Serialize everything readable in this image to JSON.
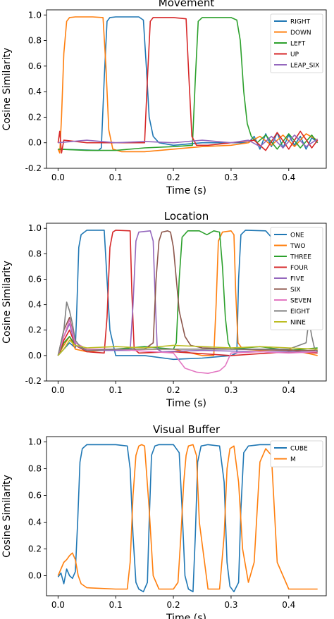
{
  "chart_data": [
    {
      "type": "line",
      "title": "Movement",
      "xlabel": "Time (s)",
      "ylabel": "Cosine Similarity",
      "xlim": [
        -0.02,
        0.465
      ],
      "ylim": [
        -0.2,
        1.04
      ],
      "xticks": [
        "0.0",
        "0.1",
        "0.2",
        "0.3",
        "0.4"
      ],
      "xtick_values": [
        0.0,
        0.1,
        0.2,
        0.3,
        0.4
      ],
      "yticks": [
        "-0.2",
        "0.0",
        "0.2",
        "0.4",
        "0.6",
        "0.8",
        "1.0"
      ],
      "ytick_values": [
        -0.2,
        0.0,
        0.2,
        0.4,
        0.6,
        0.8,
        1.0
      ],
      "legend_position": "top-right",
      "series": [
        {
          "name": "RIGHT",
          "color": "#1f77b4",
          "x": [
            0.0,
            0.07,
            0.075,
            0.08,
            0.085,
            0.09,
            0.1,
            0.14,
            0.148,
            0.153,
            0.158,
            0.165,
            0.175,
            0.2,
            0.25,
            0.3,
            0.33,
            0.34,
            0.35,
            0.36,
            0.37,
            0.38,
            0.39,
            0.4,
            0.41,
            0.42,
            0.43,
            0.44,
            0.45
          ],
          "y": [
            -0.05,
            -0.06,
            -0.04,
            0.5,
            0.95,
            0.98,
            0.985,
            0.985,
            0.96,
            0.6,
            0.2,
            0.05,
            0.0,
            -0.02,
            0.0,
            0.0,
            0.0,
            0.05,
            -0.05,
            0.07,
            -0.03,
            0.08,
            -0.04,
            0.06,
            -0.02,
            0.05,
            -0.05,
            0.04,
            0.0
          ]
        },
        {
          "name": "DOWN",
          "color": "#ff7f0e",
          "x": [
            0.0,
            0.003,
            0.006,
            0.01,
            0.015,
            0.02,
            0.03,
            0.06,
            0.078,
            0.083,
            0.088,
            0.095,
            0.11,
            0.15,
            0.2,
            0.25,
            0.3,
            0.33,
            0.35,
            0.37,
            0.39,
            0.41,
            0.43,
            0.45
          ],
          "y": [
            -0.05,
            -0.08,
            0.2,
            0.7,
            0.95,
            0.98,
            0.985,
            0.985,
            0.98,
            0.6,
            0.1,
            -0.05,
            -0.07,
            -0.07,
            -0.05,
            -0.03,
            -0.02,
            0.0,
            0.05,
            -0.02,
            0.06,
            -0.03,
            0.07,
            0.02
          ]
        },
        {
          "name": "LEFT",
          "color": "#2ca02c",
          "x": [
            0.0,
            0.05,
            0.1,
            0.15,
            0.2,
            0.233,
            0.238,
            0.243,
            0.25,
            0.3,
            0.31,
            0.316,
            0.322,
            0.328,
            0.335,
            0.345,
            0.36,
            0.38,
            0.4,
            0.42,
            0.44,
            0.45
          ],
          "y": [
            -0.05,
            -0.06,
            -0.06,
            -0.04,
            -0.03,
            -0.02,
            0.5,
            0.95,
            0.98,
            0.98,
            0.96,
            0.8,
            0.4,
            0.15,
            0.05,
            0.0,
            0.06,
            -0.05,
            0.07,
            -0.04,
            0.06,
            0.0
          ]
        },
        {
          "name": "UP",
          "color": "#d62728",
          "x": [
            0.0,
            0.003,
            0.006,
            0.01,
            0.05,
            0.1,
            0.15,
            0.155,
            0.16,
            0.165,
            0.175,
            0.2,
            0.222,
            0.227,
            0.232,
            0.24,
            0.26,
            0.3,
            0.34,
            0.36,
            0.38,
            0.4,
            0.42,
            0.44,
            0.45
          ],
          "y": [
            0.0,
            0.09,
            -0.08,
            0.02,
            0.0,
            0.0,
            0.0,
            0.5,
            0.95,
            0.98,
            0.98,
            0.98,
            0.97,
            0.5,
            0.05,
            -0.02,
            -0.02,
            0.0,
            0.02,
            -0.06,
            0.08,
            -0.05,
            0.09,
            -0.04,
            0.02
          ]
        },
        {
          "name": "LEAP_SIX",
          "color": "#9467bd",
          "x": [
            0.0,
            0.05,
            0.1,
            0.15,
            0.2,
            0.25,
            0.3,
            0.33,
            0.35,
            0.37,
            0.39,
            0.41,
            0.43,
            0.45
          ],
          "y": [
            0.0,
            0.02,
            0.0,
            0.01,
            0.0,
            0.02,
            0.0,
            0.02,
            -0.03,
            0.05,
            -0.04,
            0.06,
            -0.03,
            0.03
          ]
        }
      ]
    },
    {
      "type": "line",
      "title": "Location",
      "xlabel": "Time (s)",
      "ylabel": "Cosine Similarity",
      "xlim": [
        -0.02,
        0.465
      ],
      "ylim": [
        -0.2,
        1.04
      ],
      "xticks": [
        "0.0",
        "0.1",
        "0.2",
        "0.3",
        "0.4"
      ],
      "xtick_values": [
        0.0,
        0.1,
        0.2,
        0.3,
        0.4
      ],
      "yticks": [
        "-0.2",
        "0.0",
        "0.2",
        "0.4",
        "0.6",
        "0.8",
        "1.0"
      ],
      "ytick_values": [
        -0.2,
        0.0,
        0.2,
        0.4,
        0.6,
        0.8,
        1.0
      ],
      "legend_position": "top-right",
      "series": [
        {
          "name": "ONE",
          "color": "#1f77b4",
          "x": [
            0.0,
            0.01,
            0.02,
            0.03,
            0.032,
            0.036,
            0.04,
            0.05,
            0.08,
            0.09,
            0.1,
            0.15,
            0.2,
            0.25,
            0.3,
            0.31,
            0.313,
            0.317,
            0.325,
            0.36,
            0.37,
            0.375,
            0.38,
            0.385,
            0.39,
            0.4,
            0.41
          ],
          "y": [
            0.0,
            0.05,
            0.1,
            0.06,
            0.3,
            0.85,
            0.95,
            0.985,
            0.985,
            0.2,
            0.0,
            0.0,
            -0.03,
            -0.02,
            0.0,
            0.02,
            0.6,
            0.95,
            0.985,
            0.98,
            0.93,
            0.95,
            0.88,
            0.9,
            0.87,
            0.92,
            0.9
          ]
        },
        {
          "name": "TWO",
          "color": "#ff7f0e",
          "x": [
            0.0,
            0.01,
            0.02,
            0.03,
            0.05,
            0.1,
            0.15,
            0.2,
            0.25,
            0.27,
            0.274,
            0.278,
            0.285,
            0.3,
            0.305,
            0.308,
            0.312,
            0.32,
            0.35,
            0.4,
            0.45
          ],
          "y": [
            0.0,
            0.08,
            0.15,
            0.05,
            0.03,
            0.05,
            0.05,
            0.05,
            0.0,
            0.0,
            0.4,
            0.9,
            0.97,
            0.98,
            0.95,
            0.5,
            0.1,
            0.05,
            0.04,
            0.05,
            0.0
          ]
        },
        {
          "name": "THREE",
          "color": "#2ca02c",
          "x": [
            0.0,
            0.01,
            0.02,
            0.03,
            0.05,
            0.1,
            0.15,
            0.2,
            0.205,
            0.21,
            0.215,
            0.225,
            0.245,
            0.258,
            0.27,
            0.28,
            0.285,
            0.29,
            0.295,
            0.3,
            0.35,
            0.4,
            0.45
          ],
          "y": [
            0.0,
            0.1,
            0.15,
            0.08,
            0.05,
            0.05,
            0.07,
            0.05,
            0.1,
            0.6,
            0.93,
            0.98,
            0.98,
            0.95,
            0.98,
            0.97,
            0.7,
            0.3,
            0.1,
            0.05,
            0.07,
            0.04,
            0.06
          ]
        },
        {
          "name": "FOUR",
          "color": "#d62728",
          "x": [
            0.0,
            0.01,
            0.02,
            0.03,
            0.05,
            0.08,
            0.085,
            0.09,
            0.095,
            0.1,
            0.125,
            0.128,
            0.132,
            0.14,
            0.2,
            0.3,
            0.4,
            0.45
          ],
          "y": [
            0.0,
            0.12,
            0.2,
            0.08,
            0.03,
            0.02,
            0.3,
            0.85,
            0.97,
            0.985,
            0.98,
            0.5,
            0.05,
            0.02,
            0.03,
            0.0,
            0.03,
            0.02
          ]
        },
        {
          "name": "FIVE",
          "color": "#9467bd",
          "x": [
            0.0,
            0.01,
            0.02,
            0.03,
            0.05,
            0.125,
            0.13,
            0.135,
            0.14,
            0.16,
            0.165,
            0.168,
            0.172,
            0.18,
            0.25,
            0.35,
            0.45
          ],
          "y": [
            0.0,
            0.15,
            0.25,
            0.08,
            0.04,
            0.04,
            0.4,
            0.9,
            0.97,
            0.98,
            0.9,
            0.5,
            0.05,
            0.03,
            0.04,
            0.03,
            0.03
          ]
        },
        {
          "name": "SIX",
          "color": "#8c564b",
          "x": [
            0.0,
            0.01,
            0.02,
            0.03,
            0.05,
            0.15,
            0.165,
            0.17,
            0.175,
            0.18,
            0.19,
            0.195,
            0.2,
            0.205,
            0.21,
            0.22,
            0.23,
            0.25,
            0.3,
            0.4,
            0.45
          ],
          "y": [
            0.0,
            0.2,
            0.3,
            0.1,
            0.05,
            0.05,
            0.1,
            0.6,
            0.9,
            0.97,
            0.98,
            0.97,
            0.85,
            0.6,
            0.35,
            0.15,
            0.08,
            0.06,
            0.05,
            0.04,
            0.04
          ]
        },
        {
          "name": "SEVEN",
          "color": "#e377c2",
          "x": [
            0.0,
            0.01,
            0.02,
            0.03,
            0.05,
            0.1,
            0.2,
            0.22,
            0.24,
            0.26,
            0.28,
            0.29,
            0.3,
            0.35,
            0.4,
            0.45
          ],
          "y": [
            0.0,
            0.15,
            0.28,
            0.1,
            0.05,
            0.05,
            0.02,
            -0.1,
            -0.13,
            -0.14,
            -0.12,
            -0.08,
            0.02,
            0.03,
            0.02,
            0.03
          ]
        },
        {
          "name": "EIGHT",
          "color": "#7f7f7f",
          "x": [
            0.0,
            0.01,
            0.015,
            0.02,
            0.025,
            0.03,
            0.04,
            0.05,
            0.1,
            0.2,
            0.3,
            0.4,
            0.43,
            0.435,
            0.44,
            0.445,
            0.45
          ],
          "y": [
            0.0,
            0.2,
            0.42,
            0.35,
            0.25,
            0.12,
            0.06,
            0.04,
            0.05,
            0.05,
            0.05,
            0.05,
            0.1,
            0.28,
            0.15,
            0.05,
            0.03
          ]
        },
        {
          "name": "NINE",
          "color": "#bcbd22",
          "x": [
            0.0,
            0.01,
            0.02,
            0.03,
            0.05,
            0.1,
            0.15,
            0.2,
            0.25,
            0.3,
            0.35,
            0.4,
            0.45
          ],
          "y": [
            0.0,
            0.05,
            0.12,
            0.08,
            0.06,
            0.07,
            0.06,
            0.08,
            0.07,
            0.06,
            0.07,
            0.06,
            0.05
          ]
        }
      ]
    },
    {
      "type": "line",
      "title": "Visual Buffer",
      "xlabel": "Time (s)",
      "ylabel": "Cosine Similarity",
      "xlim": [
        -0.02,
        0.465
      ],
      "ylim": [
        -0.15,
        1.04
      ],
      "xticks": [
        "0.0",
        "0.1",
        "0.2",
        "0.3",
        "0.4"
      ],
      "xtick_values": [
        0.0,
        0.1,
        0.2,
        0.3,
        0.4
      ],
      "yticks": [
        "0.0",
        "0.2",
        "0.4",
        "0.6",
        "0.8",
        "1.0"
      ],
      "ytick_values": [
        0.0,
        0.2,
        0.4,
        0.6,
        0.8,
        1.0
      ],
      "legend_position": "top-right",
      "series": [
        {
          "name": "CUBE",
          "color": "#1f77b4",
          "x": [
            0.0,
            0.005,
            0.01,
            0.015,
            0.02,
            0.025,
            0.03,
            0.034,
            0.038,
            0.042,
            0.05,
            0.1,
            0.12,
            0.125,
            0.13,
            0.135,
            0.14,
            0.148,
            0.155,
            0.158,
            0.162,
            0.168,
            0.175,
            0.2,
            0.21,
            0.215,
            0.22,
            0.226,
            0.234,
            0.238,
            0.242,
            0.248,
            0.26,
            0.28,
            0.288,
            0.293,
            0.298,
            0.305,
            0.313,
            0.317,
            0.322,
            0.33,
            0.35,
            0.4,
            0.45
          ],
          "y": [
            -0.01,
            0.02,
            -0.06,
            0.05,
            0.0,
            -0.02,
            0.03,
            0.4,
            0.85,
            0.95,
            0.98,
            0.98,
            0.97,
            0.8,
            0.3,
            -0.05,
            -0.1,
            -0.12,
            -0.05,
            0.4,
            0.9,
            0.97,
            0.98,
            0.98,
            0.92,
            0.5,
            0.0,
            -0.1,
            -0.12,
            0.3,
            0.85,
            0.97,
            0.98,
            0.97,
            0.7,
            0.1,
            -0.08,
            -0.12,
            -0.05,
            0.5,
            0.92,
            0.97,
            0.98,
            0.98,
            0.98
          ]
        },
        {
          "name": "M",
          "color": "#ff7f0e",
          "x": [
            0.0,
            0.005,
            0.01,
            0.015,
            0.02,
            0.025,
            0.03,
            0.035,
            0.04,
            0.05,
            0.1,
            0.12,
            0.125,
            0.13,
            0.135,
            0.14,
            0.145,
            0.15,
            0.158,
            0.165,
            0.175,
            0.2,
            0.208,
            0.213,
            0.218,
            0.222,
            0.226,
            0.234,
            0.24,
            0.245,
            0.26,
            0.28,
            0.288,
            0.293,
            0.298,
            0.305,
            0.313,
            0.32,
            0.33,
            0.34,
            0.35,
            0.36,
            0.37,
            0.38,
            0.4,
            0.45
          ],
          "y": [
            0.0,
            0.05,
            0.1,
            0.12,
            0.15,
            0.17,
            0.12,
            0.0,
            -0.06,
            -0.09,
            -0.1,
            -0.1,
            0.1,
            0.6,
            0.9,
            0.97,
            0.98,
            0.97,
            0.5,
            0.0,
            -0.1,
            -0.1,
            -0.05,
            0.3,
            0.7,
            0.9,
            0.97,
            0.98,
            0.9,
            0.4,
            -0.1,
            -0.1,
            0.3,
            0.8,
            0.95,
            0.97,
            0.7,
            0.2,
            -0.05,
            0.1,
            0.85,
            0.95,
            0.9,
            0.1,
            -0.1,
            -0.1
          ]
        }
      ]
    }
  ]
}
